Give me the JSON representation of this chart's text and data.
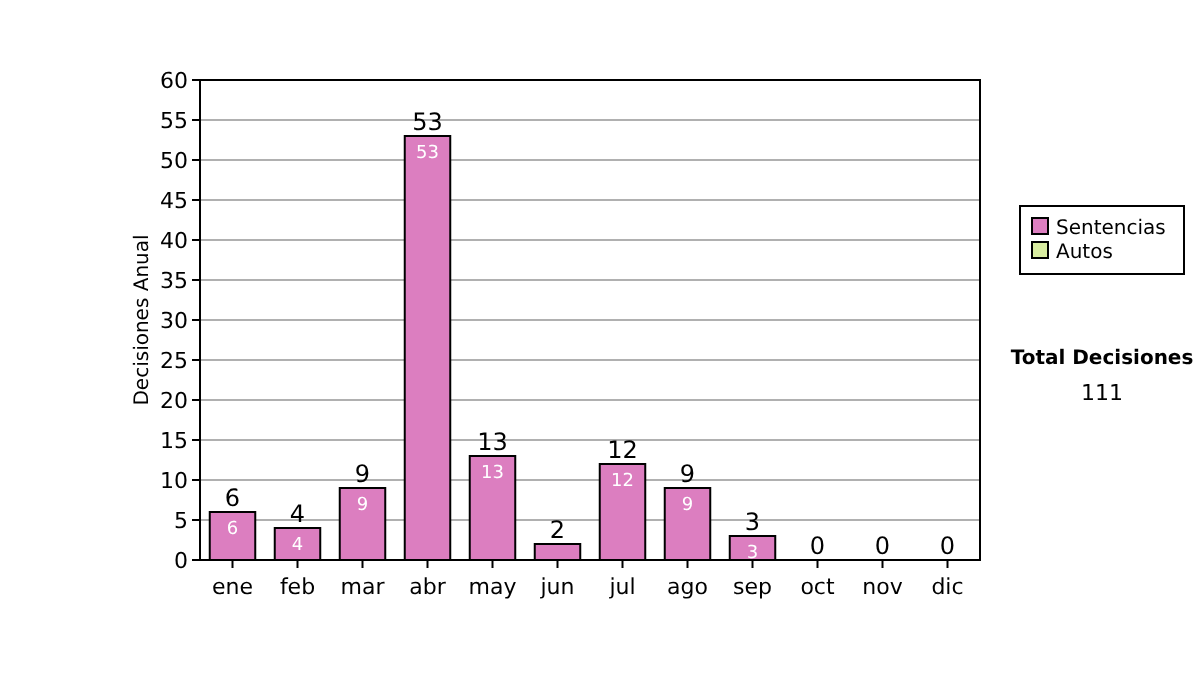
{
  "chart_data": {
    "type": "bar",
    "stacked": true,
    "ylabel": "Decisiones Anual",
    "categories": [
      "ene",
      "feb",
      "mar",
      "abr",
      "may",
      "jun",
      "jul",
      "ago",
      "sep",
      "oct",
      "nov",
      "dic"
    ],
    "series": [
      {
        "name": "Sentencias",
        "color": "#dc7ec0",
        "values": [
          6,
          4,
          9,
          53,
          13,
          2,
          12,
          9,
          3,
          0,
          0,
          0
        ],
        "value_labels": [
          "6",
          "4",
          "9",
          "53",
          "13",
          null,
          "12",
          "9",
          "3",
          null,
          null,
          null
        ]
      },
      {
        "name": "Autos",
        "color": "#d8eca0",
        "values": [
          0,
          0,
          0,
          0,
          0,
          0,
          0,
          0,
          0,
          0,
          0,
          0
        ]
      }
    ],
    "totals": [
      "6",
      "4",
      "9",
      "53",
      "13",
      "2",
      "12",
      "9",
      "3",
      "0",
      "0",
      "0"
    ],
    "ylim": [
      0,
      60
    ],
    "yticks": [
      0,
      5,
      10,
      15,
      20,
      25,
      30,
      35,
      40,
      45,
      50,
      55,
      60
    ],
    "grid": "y",
    "legend": "right",
    "annotations": [
      "Total Decisiones",
      "111"
    ]
  }
}
